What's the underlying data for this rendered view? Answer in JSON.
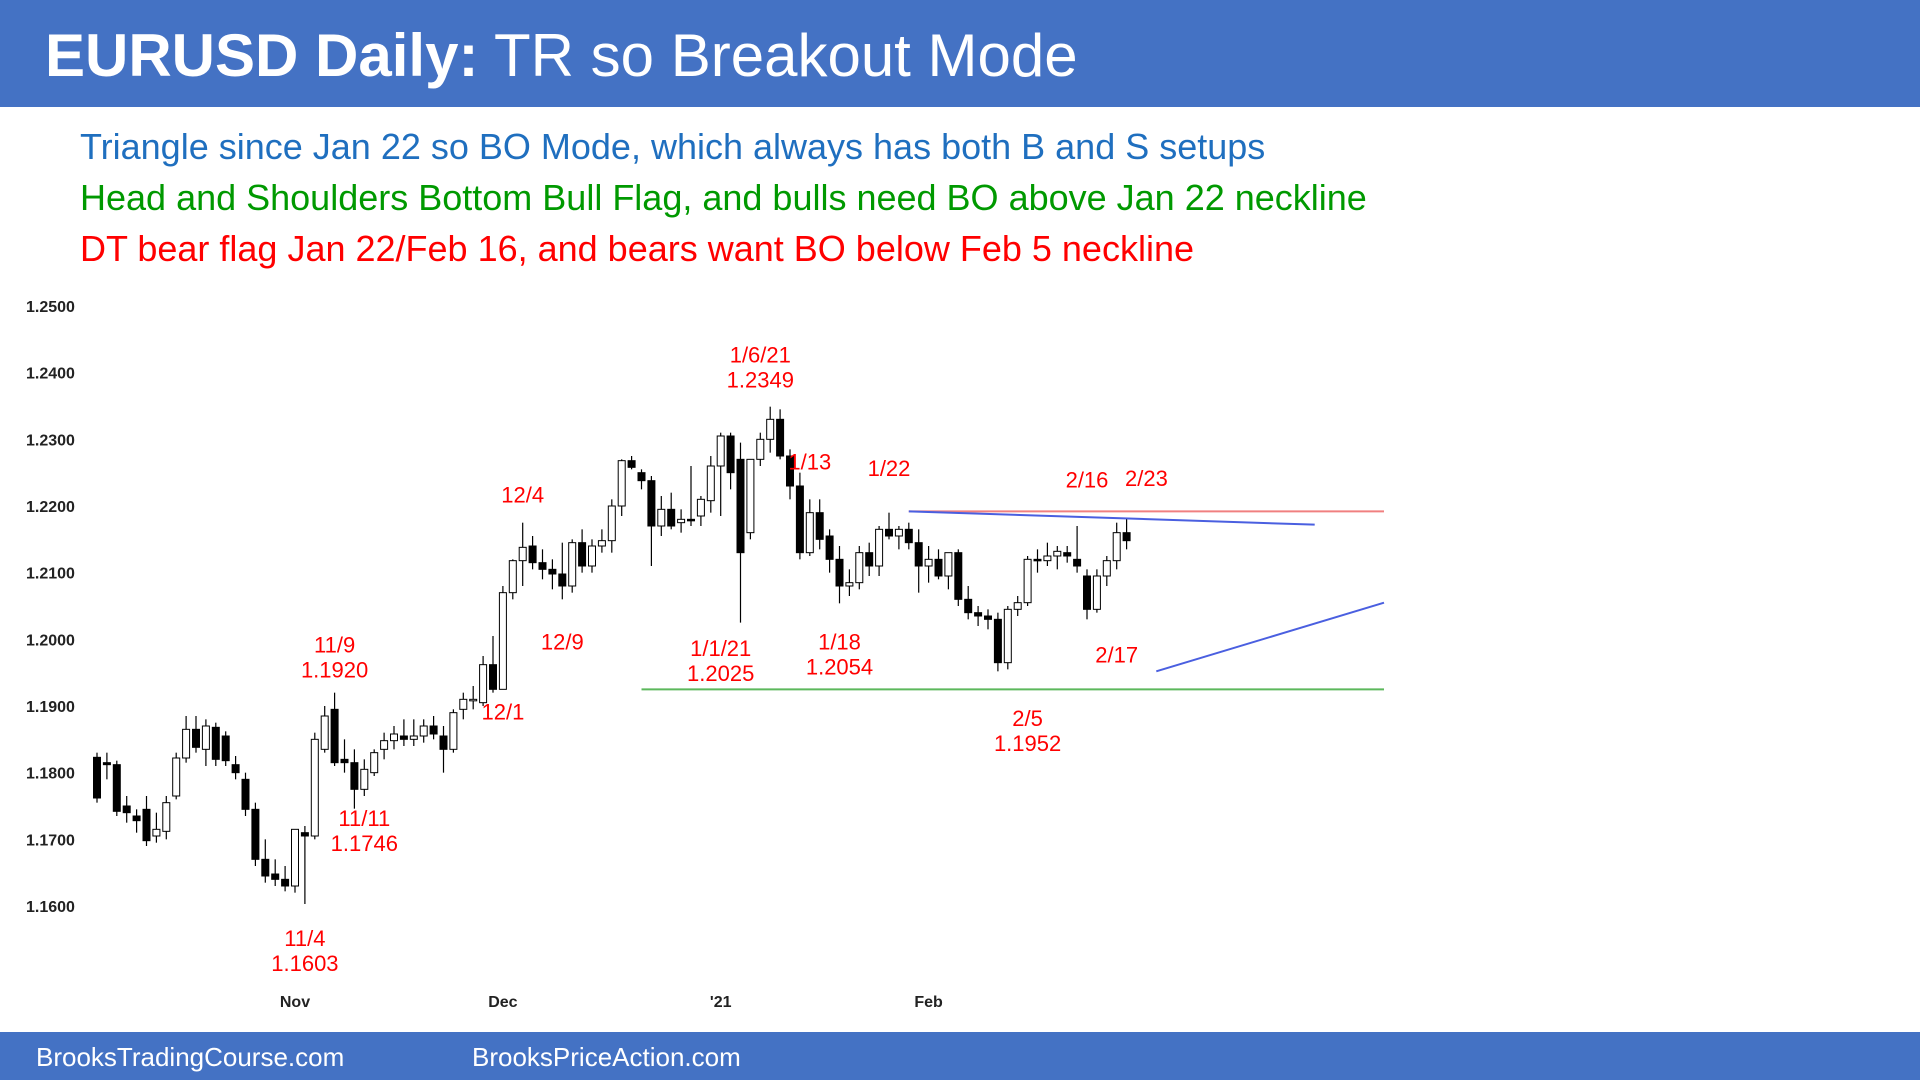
{
  "header": {
    "title_bold": "EURUSD Daily:",
    "title_rest": "TR so Breakout Mode"
  },
  "notes": {
    "line1": "Triangle since Jan 22 so BO Mode, which always has both B and S setups",
    "line2": "Head and Shoulders Bottom Bull Flag, and bulls need BO above Jan 22 neckline",
    "line3": "DT bear flag Jan 22/Feb 16, and bears want BO below Feb 5 neckline"
  },
  "footer": {
    "left": "BrooksTradingCourse.com",
    "right": "BrooksPriceAction.com"
  },
  "colors": {
    "header_bg": "#4472C4",
    "blue_text": "#1F6FBF",
    "green_text": "#009900",
    "red_text": "#FF0000",
    "bull_candle": "#ffffff",
    "bear_candle": "#000000",
    "triangle_lines": "#4A5FE0",
    "neckline_top": "#F08080",
    "neckline_bottom": "#5CB85C"
  },
  "chart_data": {
    "type": "candlestick",
    "instrument": "EURUSD",
    "timeframe": "Daily",
    "ylim": [
      1.16,
      1.25
    ],
    "yticks": [
      "1.2500",
      "1.2400",
      "1.2300",
      "1.2200",
      "1.2100",
      "1.2000",
      "1.1900",
      "1.1800",
      "1.1700",
      "1.1600"
    ],
    "xticks": [
      {
        "label": "Nov",
        "bar": 20
      },
      {
        "label": "Dec",
        "bar": 41
      },
      {
        "label": "'21",
        "bar": 63
      },
      {
        "label": "Feb",
        "bar": 84
      }
    ],
    "candles": [
      [
        1.1823,
        1.183,
        1.1755,
        1.1762
      ],
      [
        1.1815,
        1.183,
        1.179,
        1.1812
      ],
      [
        1.1812,
        1.1818,
        1.1735,
        1.1742
      ],
      [
        1.175,
        1.1765,
        1.1725,
        1.174
      ],
      [
        1.1735,
        1.1745,
        1.171,
        1.1728
      ],
      [
        1.1745,
        1.1765,
        1.169,
        1.1698
      ],
      [
        1.1705,
        1.174,
        1.1695,
        1.1715
      ],
      [
        1.1712,
        1.1765,
        1.17,
        1.1755
      ],
      [
        1.1765,
        1.183,
        1.176,
        1.1822
      ],
      [
        1.1822,
        1.1885,
        1.1815,
        1.1865
      ],
      [
        1.1865,
        1.1885,
        1.183,
        1.1838
      ],
      [
        1.1835,
        1.188,
        1.181,
        1.187
      ],
      [
        1.1868,
        1.1875,
        1.181,
        1.182
      ],
      [
        1.1855,
        1.1862,
        1.181,
        1.1818
      ],
      [
        1.1812,
        1.1825,
        1.179,
        1.18
      ],
      [
        1.179,
        1.18,
        1.1735,
        1.1745
      ],
      [
        1.1745,
        1.1755,
        1.166,
        1.167
      ],
      [
        1.167,
        1.17,
        1.1635,
        1.1645
      ],
      [
        1.1648,
        1.167,
        1.163,
        1.164
      ],
      [
        1.164,
        1.166,
        1.1622,
        1.163
      ],
      [
        1.163,
        1.171,
        1.162,
        1.1715
      ],
      [
        1.171,
        1.172,
        1.1603,
        1.1705
      ],
      [
        1.1705,
        1.186,
        1.17,
        1.185
      ],
      [
        1.1835,
        1.19,
        1.183,
        1.1885
      ],
      [
        1.1895,
        1.192,
        1.181,
        1.1815
      ],
      [
        1.182,
        1.185,
        1.18,
        1.1815
      ],
      [
        1.1815,
        1.1835,
        1.1746,
        1.1775
      ],
      [
        1.1775,
        1.182,
        1.1765,
        1.1805
      ],
      [
        1.18,
        1.1835,
        1.1795,
        1.183
      ],
      [
        1.1835,
        1.186,
        1.182,
        1.1848
      ],
      [
        1.1848,
        1.187,
        1.1835,
        1.1858
      ],
      [
        1.1855,
        1.188,
        1.184,
        1.185
      ],
      [
        1.185,
        1.188,
        1.184,
        1.1855
      ],
      [
        1.1855,
        1.188,
        1.1845,
        1.187
      ],
      [
        1.187,
        1.1885,
        1.185,
        1.1858
      ],
      [
        1.1855,
        1.187,
        1.18,
        1.1835
      ],
      [
        1.1835,
        1.1895,
        1.183,
        1.189
      ],
      [
        1.1895,
        1.192,
        1.188,
        1.191
      ],
      [
        1.191,
        1.193,
        1.1895,
        1.191
      ],
      [
        1.1905,
        1.1975,
        1.19,
        1.1962
      ],
      [
        1.1962,
        1.2005,
        1.192,
        1.1925
      ],
      [
        1.1925,
        1.208,
        1.1925,
        1.207
      ],
      [
        1.207,
        1.212,
        1.206,
        1.2118
      ],
      [
        1.2118,
        1.2175,
        1.208,
        1.2138
      ],
      [
        1.214,
        1.2155,
        1.2105,
        1.2115
      ],
      [
        1.2115,
        1.2135,
        1.209,
        1.2105
      ],
      [
        1.2105,
        1.212,
        1.2075,
        1.2098
      ],
      [
        1.2098,
        1.2145,
        1.206,
        1.208
      ],
      [
        1.208,
        1.215,
        1.207,
        1.2145
      ],
      [
        1.2145,
        1.2165,
        1.21,
        1.211
      ],
      [
        1.211,
        1.215,
        1.21,
        1.214
      ],
      [
        1.214,
        1.2165,
        1.213,
        1.2148
      ],
      [
        1.2148,
        1.221,
        1.213,
        1.22
      ],
      [
        1.22,
        1.227,
        1.2185,
        1.2268
      ],
      [
        1.2268,
        1.2275,
        1.2255,
        1.2258
      ],
      [
        1.225,
        1.2255,
        1.2225,
        1.2238
      ],
      [
        1.2238,
        1.2245,
        1.211,
        1.217
      ],
      [
        1.217,
        1.2215,
        1.2155,
        1.2195
      ],
      [
        1.2195,
        1.222,
        1.2165,
        1.217
      ],
      [
        1.2175,
        1.2195,
        1.216,
        1.218
      ],
      [
        1.218,
        1.226,
        1.217,
        1.2178
      ],
      [
        1.2185,
        1.2215,
        1.217,
        1.221
      ],
      [
        1.2208,
        1.2275,
        1.219,
        1.226
      ],
      [
        1.226,
        1.231,
        1.2185,
        1.2305
      ],
      [
        1.2305,
        1.231,
        1.2225,
        1.225
      ],
      [
        1.227,
        1.2295,
        1.2025,
        1.213
      ],
      [
        1.216,
        1.227,
        1.215,
        1.227
      ],
      [
        1.227,
        1.231,
        1.226,
        1.23
      ],
      [
        1.23,
        1.2349,
        1.228,
        1.233
      ],
      [
        1.233,
        1.2345,
        1.227,
        1.2275
      ],
      [
        1.2275,
        1.2285,
        1.221,
        1.223
      ],
      [
        1.223,
        1.225,
        1.212,
        1.213
      ],
      [
        1.213,
        1.221,
        1.2125,
        1.219
      ],
      [
        1.219,
        1.221,
        1.2135,
        1.215
      ],
      [
        1.2155,
        1.2165,
        1.21,
        1.212
      ],
      [
        1.212,
        1.214,
        1.2054,
        1.208
      ],
      [
        1.208,
        1.2105,
        1.2065,
        1.2085
      ],
      [
        1.2085,
        1.214,
        1.2075,
        1.213
      ],
      [
        1.213,
        1.2145,
        1.2095,
        1.211
      ],
      [
        1.211,
        1.217,
        1.2095,
        1.2165
      ],
      [
        1.2165,
        1.219,
        1.215,
        1.2155
      ],
      [
        1.2155,
        1.217,
        1.2135,
        1.2165
      ],
      [
        1.2165,
        1.2175,
        1.2135,
        1.2145
      ],
      [
        1.2145,
        1.2165,
        1.207,
        1.211
      ],
      [
        1.211,
        1.214,
        1.2085,
        1.212
      ],
      [
        1.212,
        1.2135,
        1.209,
        1.2095
      ],
      [
        1.2095,
        1.2125,
        1.2075,
        1.213
      ],
      [
        1.213,
        1.2135,
        1.205,
        1.206
      ],
      [
        1.206,
        1.208,
        1.203,
        1.204
      ],
      [
        1.204,
        1.205,
        1.202,
        1.2035
      ],
      [
        1.2035,
        1.2045,
        1.2015,
        1.203
      ],
      [
        1.203,
        1.204,
        1.1952,
        1.1965
      ],
      [
        1.1965,
        1.205,
        1.1955,
        1.2045
      ],
      [
        1.2045,
        1.2065,
        1.2035,
        1.2055
      ],
      [
        1.2055,
        1.2125,
        1.205,
        1.212
      ],
      [
        1.212,
        1.2135,
        1.21,
        1.2118
      ],
      [
        1.2118,
        1.2145,
        1.211,
        1.2125
      ],
      [
        1.2125,
        1.214,
        1.2105,
        1.2132
      ],
      [
        1.213,
        1.214,
        1.2115,
        1.2125
      ],
      [
        1.212,
        1.217,
        1.21,
        1.211
      ],
      [
        1.2095,
        1.2105,
        1.203,
        1.2045
      ],
      [
        1.2045,
        1.2105,
        1.204,
        1.2095
      ],
      [
        1.2095,
        1.2125,
        1.208,
        1.2118
      ],
      [
        1.2118,
        1.2175,
        1.2105,
        1.216
      ],
      [
        1.216,
        1.218,
        1.2135,
        1.2148
      ]
    ],
    "lines": [
      {
        "name": "jan22-neckline",
        "from": [
          82,
          1.2192
        ],
        "to": [
          130,
          1.2192
        ]
      },
      {
        "name": "triangle-top",
        "from": [
          82,
          1.2192
        ],
        "to": [
          123,
          1.2172
        ]
      },
      {
        "name": "triangle-bottom",
        "from": [
          107,
          1.1952
        ],
        "to": [
          130,
          1.2055
        ]
      },
      {
        "name": "feb5-neckline",
        "from": [
          55,
          1.1925
        ],
        "to": [
          130,
          1.1925
        ]
      }
    ],
    "annotations": [
      {
        "lines": [
          "11/9",
          "1.1920"
        ],
        "bar": 24,
        "price": 1.198
      },
      {
        "lines": [
          "11/4",
          "1.1603"
        ],
        "bar": 21,
        "price": 1.154
      },
      {
        "lines": [
          "11/11",
          "1.1746"
        ],
        "bar": 27,
        "price": 1.172
      },
      {
        "lines": [
          "12/4"
        ],
        "bar": 43,
        "price": 1.2205
      },
      {
        "lines": [
          "12/9"
        ],
        "bar": 47,
        "price": 1.1985
      },
      {
        "lines": [
          "12/1"
        ],
        "bar": 41,
        "price": 1.188
      },
      {
        "lines": [
          "1/6/21",
          "1.2349"
        ],
        "bar": 67,
        "price": 1.2415
      },
      {
        "lines": [
          "1/1/21",
          "1.2025"
        ],
        "bar": 63,
        "price": 1.1975
      },
      {
        "lines": [
          "1/13"
        ],
        "bar": 72,
        "price": 1.2255
      },
      {
        "lines": [
          "1/18",
          "1.2054"
        ],
        "bar": 75,
        "price": 1.1985
      },
      {
        "lines": [
          "1/22"
        ],
        "bar": 80,
        "price": 1.2245
      },
      {
        "lines": [
          "2/16"
        ],
        "bar": 100,
        "price": 1.2228
      },
      {
        "lines": [
          "2/23"
        ],
        "bar": 106,
        "price": 1.223
      },
      {
        "lines": [
          "2/17"
        ],
        "bar": 103,
        "price": 1.1965
      },
      {
        "lines": [
          "2/5",
          "1.1952"
        ],
        "bar": 94,
        "price": 1.187
      }
    ]
  }
}
